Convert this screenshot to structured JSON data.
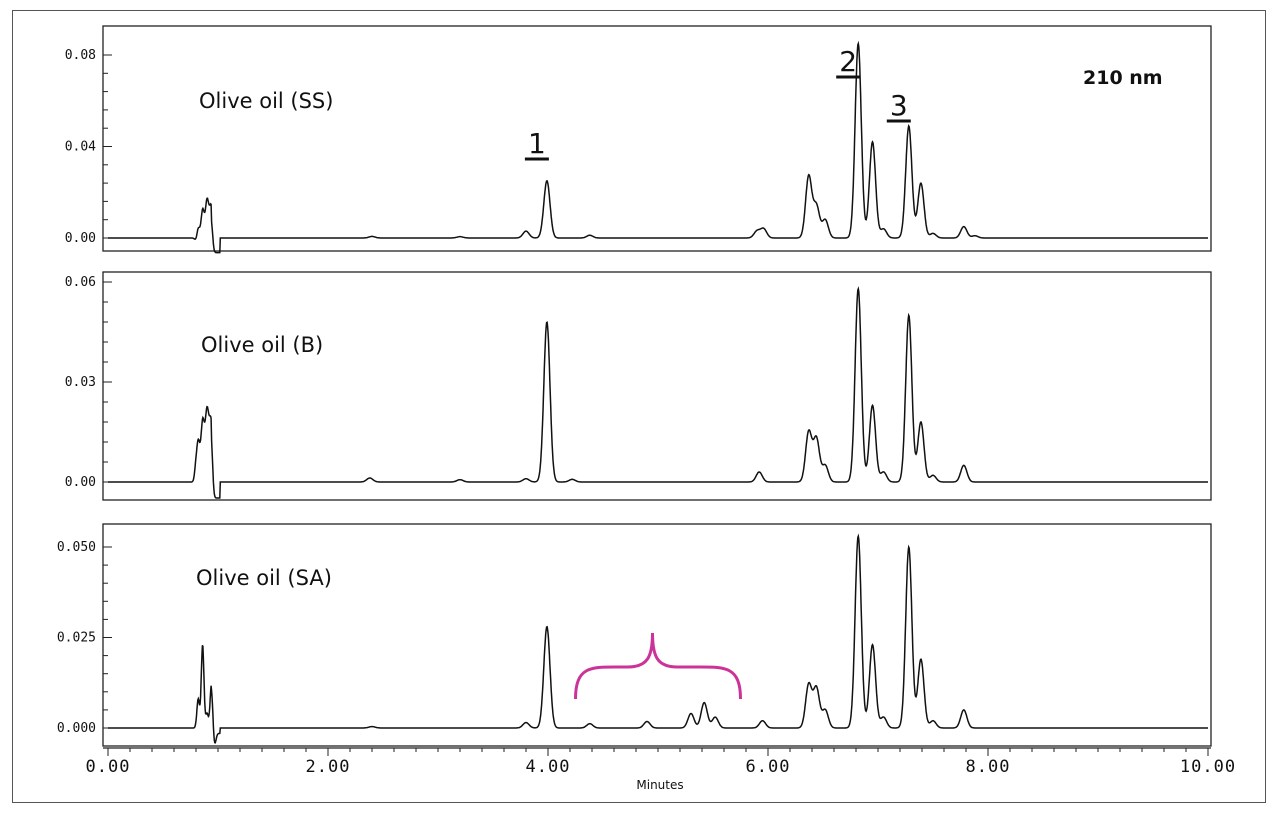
{
  "chart_data": [
    {
      "type": "line",
      "title": "Olive oil (SS)",
      "annotation": "210 nm",
      "y_tick_labels": [
        "0.00",
        "0.04",
        "0.08"
      ],
      "ylim": [
        -0.002,
        0.092
      ],
      "xlim": [
        0,
        10
      ],
      "peaks": [
        {
          "x": 0.8,
          "y": -0.001
        },
        {
          "x": 0.82,
          "y": 0.004
        },
        {
          "x": 0.84,
          "y": 0.002
        },
        {
          "x": 0.86,
          "y": 0.011
        },
        {
          "x": 0.88,
          "y": 0.005
        },
        {
          "x": 0.9,
          "y": 0.014
        },
        {
          "x": 0.92,
          "y": 0.008
        },
        {
          "x": 0.94,
          "y": 0.012
        },
        {
          "x": 2.4,
          "y": 0.0007
        },
        {
          "x": 3.2,
          "y": 0.0006
        },
        {
          "x": 3.8,
          "y": 0.003
        },
        {
          "x": 3.99,
          "y": 0.025
        },
        {
          "x": 4.38,
          "y": 0.0012
        },
        {
          "x": 5.9,
          "y": 0.003
        },
        {
          "x": 5.96,
          "y": 0.004
        },
        {
          "x": 6.37,
          "y": 0.027
        },
        {
          "x": 6.44,
          "y": 0.014
        },
        {
          "x": 6.52,
          "y": 0.008
        },
        {
          "x": 6.82,
          "y": 0.085
        },
        {
          "x": 6.95,
          "y": 0.042
        },
        {
          "x": 7.05,
          "y": 0.004
        },
        {
          "x": 7.28,
          "y": 0.049
        },
        {
          "x": 7.39,
          "y": 0.024
        },
        {
          "x": 7.5,
          "y": 0.002
        },
        {
          "x": 7.78,
          "y": 0.005
        },
        {
          "x": 7.88,
          "y": 0.001
        }
      ],
      "peak_labels": [
        {
          "label": "1",
          "x": 3.99
        },
        {
          "label": "2",
          "x": 6.82
        },
        {
          "label": "3",
          "x": 7.28
        }
      ]
    },
    {
      "type": "line",
      "title": "Olive oil (B)",
      "y_tick_labels": [
        "0.00",
        "0.03",
        "0.06"
      ],
      "ylim": [
        -0.002,
        0.062
      ],
      "xlim": [
        0,
        10
      ],
      "peaks": [
        {
          "x": 0.8,
          "y": 0.005
        },
        {
          "x": 0.82,
          "y": 0.01
        },
        {
          "x": 0.84,
          "y": 0.006
        },
        {
          "x": 0.86,
          "y": 0.015
        },
        {
          "x": 0.88,
          "y": 0.01
        },
        {
          "x": 0.9,
          "y": 0.017
        },
        {
          "x": 0.92,
          "y": 0.012
        },
        {
          "x": 0.94,
          "y": 0.015
        },
        {
          "x": 2.38,
          "y": 0.0012
        },
        {
          "x": 3.2,
          "y": 0.0007
        },
        {
          "x": 3.8,
          "y": 0.001
        },
        {
          "x": 3.99,
          "y": 0.048
        },
        {
          "x": 4.22,
          "y": 0.0008
        },
        {
          "x": 5.92,
          "y": 0.003
        },
        {
          "x": 6.37,
          "y": 0.015
        },
        {
          "x": 6.44,
          "y": 0.013
        },
        {
          "x": 6.52,
          "y": 0.005
        },
        {
          "x": 6.82,
          "y": 0.058
        },
        {
          "x": 6.95,
          "y": 0.023
        },
        {
          "x": 7.05,
          "y": 0.003
        },
        {
          "x": 7.28,
          "y": 0.05
        },
        {
          "x": 7.39,
          "y": 0.018
        },
        {
          "x": 7.5,
          "y": 0.002
        },
        {
          "x": 7.78,
          "y": 0.005
        }
      ]
    },
    {
      "type": "line",
      "title": "Olive oil (SA)",
      "y_tick_labels": [
        "0.000",
        "0.025",
        "0.050"
      ],
      "ylim": [
        -0.006,
        0.056
      ],
      "xlim": [
        0,
        10
      ],
      "xlabel": "Minutes",
      "x_tick_labels": [
        "0.00",
        "2.00",
        "4.00",
        "6.00",
        "8.00",
        "10.00"
      ],
      "peaks": [
        {
          "x": 0.82,
          "y": 0.008
        },
        {
          "x": 0.86,
          "y": 0.023
        },
        {
          "x": 0.9,
          "y": 0.004
        },
        {
          "x": 0.94,
          "y": 0.012
        },
        {
          "x": 0.97,
          "y": -0.003
        },
        {
          "x": 2.4,
          "y": 0.0004
        },
        {
          "x": 3.8,
          "y": 0.0015
        },
        {
          "x": 3.99,
          "y": 0.028
        },
        {
          "x": 4.38,
          "y": 0.0012
        },
        {
          "x": 4.9,
          "y": 0.0018
        },
        {
          "x": 5.3,
          "y": 0.004
        },
        {
          "x": 5.42,
          "y": 0.007
        },
        {
          "x": 5.52,
          "y": 0.003
        },
        {
          "x": 5.95,
          "y": 0.002
        },
        {
          "x": 6.37,
          "y": 0.012
        },
        {
          "x": 6.44,
          "y": 0.011
        },
        {
          "x": 6.52,
          "y": 0.005
        },
        {
          "x": 6.82,
          "y": 0.053
        },
        {
          "x": 6.95,
          "y": 0.023
        },
        {
          "x": 7.05,
          "y": 0.003
        },
        {
          "x": 7.28,
          "y": 0.05
        },
        {
          "x": 7.39,
          "y": 0.019
        },
        {
          "x": 7.5,
          "y": 0.002
        },
        {
          "x": 7.78,
          "y": 0.005
        }
      ],
      "bracket": {
        "x_start": 4.25,
        "x_end": 5.75,
        "x_mid": 4.95,
        "color": "#cc3399"
      }
    }
  ]
}
